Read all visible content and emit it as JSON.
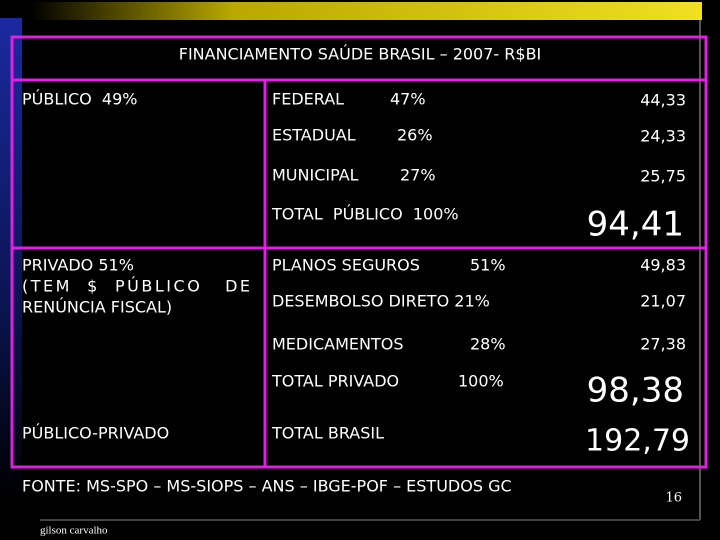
{
  "title": "FINANCIAMENTO SAÚDE BRASIL – 2007- R$BI",
  "public": {
    "label": "PÚBLICO  49%",
    "rows": [
      {
        "name": "FEDERAL",
        "share": "47%",
        "value": "44,33"
      },
      {
        "name": "ESTADUAL",
        "share": "26%",
        "value": "24,33"
      },
      {
        "name": "MUNICIPAL",
        "share": "27%",
        "value": "25,75"
      }
    ],
    "total": {
      "label": "TOTAL  PÚBLICO  100%",
      "value": "94,41"
    }
  },
  "private": {
    "label_lines": [
      "PRIVADO 51%",
      "(TEM  $  PÚBLICO   DE",
      "RENÚNCIA FISCAL)"
    ],
    "rows": [
      {
        "name": "PLANOS SEGUROS",
        "share": "51%",
        "value": "49,83"
      },
      {
        "name": "DESEMBOLSO DIRETO 21%",
        "value": "21,07"
      },
      {
        "name": "MEDICAMENTOS",
        "share": "28%",
        "value": "27,38"
      }
    ],
    "total": {
      "name": "TOTAL PRIVADO",
      "share": "100%",
      "value": "98,38"
    }
  },
  "public_private": {
    "label": "PÚBLICO-PRIVADO"
  },
  "brasil": {
    "label": "TOTAL BRASIL",
    "value": "192,79"
  },
  "source": "FONTE: MS-SPO – MS-SIOPS – ANS – IBGE-POF – ESTUDOS GC",
  "page_number": "16",
  "author": "gilson carvalho"
}
